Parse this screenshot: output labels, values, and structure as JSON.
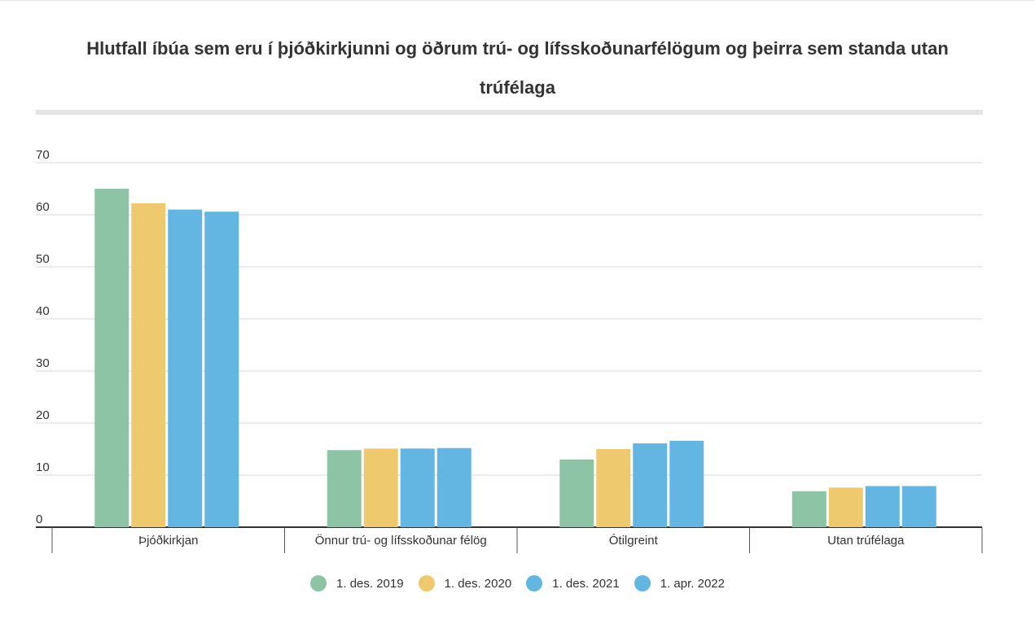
{
  "chart_data": {
    "type": "bar",
    "title": "Hlutfall íbúa sem eru í þjóðkirkjunni og öðrum trú- og lífsskoðunarfélögum og þeirra sem standa utan trúfélaga",
    "categories": [
      "Þjóðkirkjan",
      "Önnur trú- og lífsskoðunar félög",
      "Ótilgreint",
      "Utan trúfélaga"
    ],
    "series": [
      {
        "name": "1. des. 2019",
        "color": "#8ec4a6",
        "values": [
          65.0,
          14.8,
          13.0,
          6.9
        ]
      },
      {
        "name": "1. des. 2020",
        "color": "#eec96e",
        "values": [
          62.2,
          15.1,
          15.0,
          7.6
        ]
      },
      {
        "name": "1. des. 2021",
        "color": "#63b6e2",
        "values": [
          61.0,
          15.1,
          16.1,
          7.9
        ]
      },
      {
        "name": "1. apr. 2022",
        "color": "#63b6e2",
        "values": [
          60.6,
          15.2,
          16.6,
          7.9
        ]
      }
    ],
    "yticks": [
      0,
      10,
      20,
      30,
      40,
      50,
      60,
      70
    ],
    "ylim": [
      0,
      70
    ],
    "grid": true,
    "legend_position": "bottom"
  }
}
